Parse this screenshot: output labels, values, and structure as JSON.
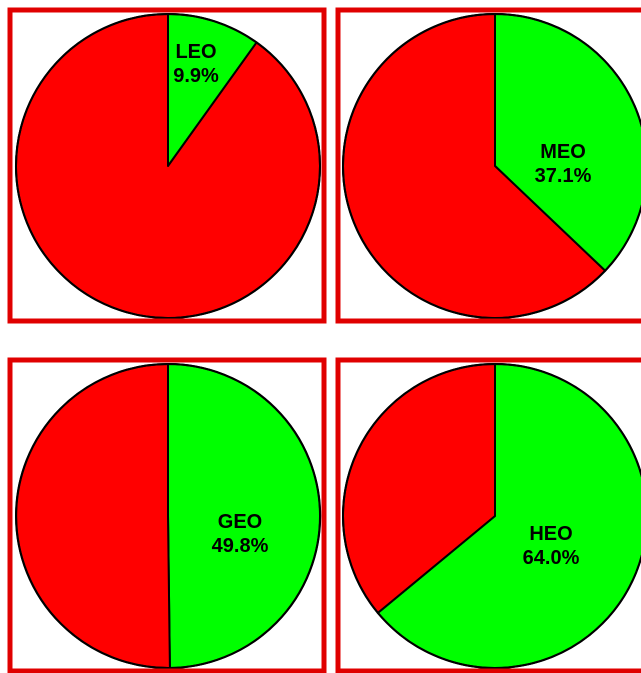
{
  "colors": {
    "frame": "#e00000",
    "highlight": "#00ff00",
    "remainder": "#ff0000",
    "outline": "#000000"
  },
  "chart_data": [
    {
      "type": "pie",
      "slices": [
        {
          "label": "LEO",
          "value_label": "9.9%",
          "value": 9.9,
          "color": "#00ff00"
        },
        {
          "label": "",
          "value": 90.1,
          "color": "#ff0000"
        }
      ]
    },
    {
      "type": "pie",
      "slices": [
        {
          "label": "MEO",
          "value_label": "37.1%",
          "value": 37.1,
          "color": "#00ff00"
        },
        {
          "label": "",
          "value": 62.9,
          "color": "#ff0000"
        }
      ]
    },
    {
      "type": "pie",
      "slices": [
        {
          "label": "GEO",
          "value_label": "49.8%",
          "value": 49.8,
          "color": "#00ff00"
        },
        {
          "label": "",
          "value": 50.2,
          "color": "#ff0000"
        }
      ]
    },
    {
      "type": "pie",
      "slices": [
        {
          "label": "HEO",
          "value_label": "64.0%",
          "value": 64.0,
          "color": "#00ff00"
        },
        {
          "label": "",
          "value": 36.0,
          "color": "#ff0000"
        }
      ]
    }
  ]
}
